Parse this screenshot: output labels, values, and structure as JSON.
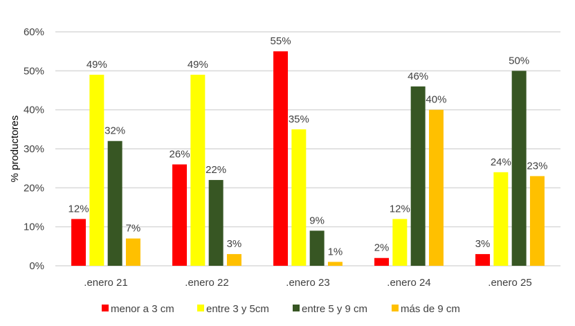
{
  "chart_data": {
    "type": "bar",
    "title": "",
    "xlabel": "",
    "ylabel": "% productores",
    "ylim": [
      0,
      60
    ],
    "yticks": [
      "0%",
      "10%",
      "20%",
      "30%",
      "40%",
      "50%",
      "60%"
    ],
    "grid": true,
    "legend_position": "bottom",
    "categories": [
      ".enero 21",
      ".enero 22",
      ".enero 23",
      ".enero 24",
      ".enero 25"
    ],
    "series": [
      {
        "name": "menor a 3 cm",
        "color": "#FF0000",
        "values": [
          12,
          26,
          55,
          2,
          3
        ],
        "labels": [
          "12%",
          "26%",
          "55%",
          "2%",
          "3%"
        ]
      },
      {
        "name": "entre 3 y 5cm",
        "color": "#FFFF00",
        "values": [
          49,
          49,
          35,
          12,
          24
        ],
        "labels": [
          "49%",
          "49%",
          "35%",
          "12%",
          "24%"
        ]
      },
      {
        "name": "entre 5 y 9 cm",
        "color": "#375623",
        "values": [
          32,
          22,
          9,
          46,
          50
        ],
        "labels": [
          "32%",
          "22%",
          "9%",
          "46%",
          "50%"
        ]
      },
      {
        "name": "más de 9 cm",
        "color": "#FFC000",
        "values": [
          7,
          3,
          1,
          40,
          23
        ],
        "labels": [
          "7%",
          "3%",
          "1%",
          "40%",
          "23%"
        ]
      }
    ]
  }
}
